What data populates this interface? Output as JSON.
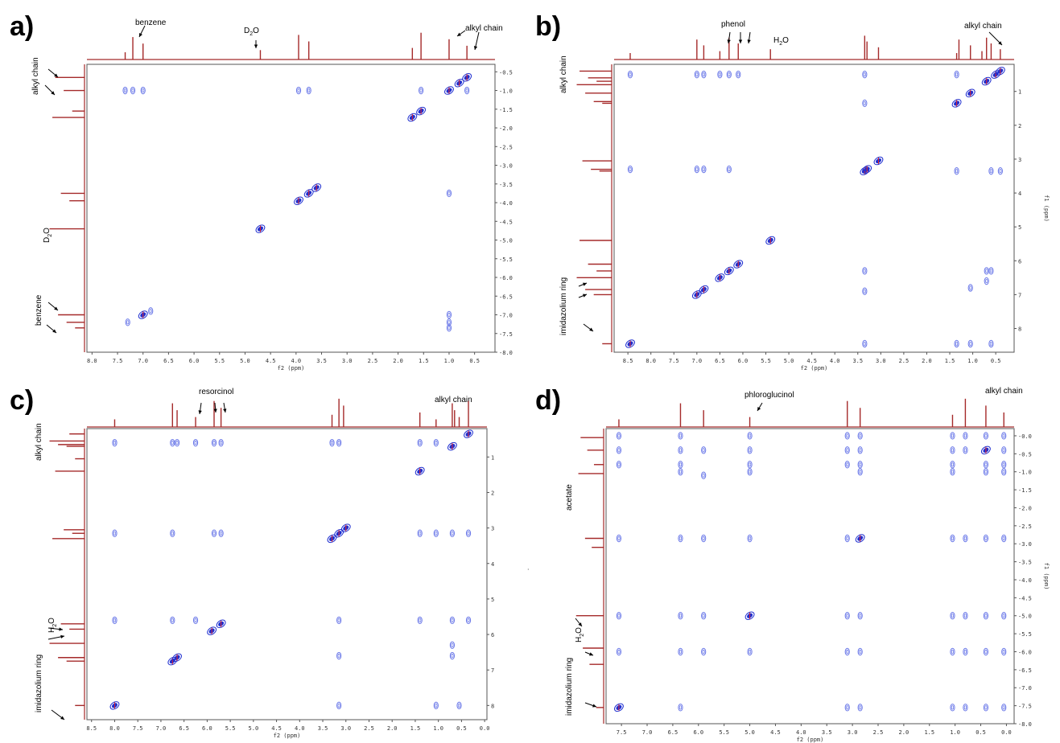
{
  "panels": [
    {
      "label": "a)",
      "annotations": [
        "benzene",
        "D",
        "2",
        "O",
        "alkyl chain"
      ],
      "vertical_annotations": [
        "alkyl chain",
        "D",
        "2",
        "O",
        "benzene"
      ],
      "xaxis_title": "f2 (ppm)",
      "yaxis_title": "f1 (ppm)",
      "xticks": [
        "8.0",
        "7.5",
        "7.0",
        "6.5",
        "6.0",
        "5.5",
        "5.0",
        "4.5",
        "4.0",
        "3.5",
        "3.0",
        "2.5",
        "2.0",
        "1.5",
        "1.0",
        "0.5"
      ],
      "yticks": [
        "-0.5",
        "-1.0",
        "-1.5",
        "-2.0",
        "-2.5",
        "-3.0",
        "-3.5",
        "-4.0",
        "-4.5",
        "-5.0",
        "-5.5",
        "-6.0",
        "-6.5",
        "-7.0",
        "-7.5",
        "-8.0"
      ]
    },
    {
      "label": "b)",
      "annotations": [
        "phenol",
        "H",
        "2",
        "O",
        "alkyl chain"
      ],
      "vertical_annotations": [
        "alkyl chain",
        "imidazolium ring"
      ],
      "xaxis_title": "f2 (ppm)",
      "yaxis_title": "f1 (ppm)",
      "xticks": [
        "8.5",
        "8.0",
        "7.5",
        "7.0",
        "6.5",
        "6.0",
        "5.5",
        "5.0",
        "4.5",
        "4.0",
        "3.5",
        "3.0",
        "2.5",
        "2.0",
        "1.5",
        "1.0",
        "0.5"
      ],
      "yticks": [
        "1",
        "2",
        "3",
        "4",
        "5",
        "6",
        "7",
        "8"
      ]
    },
    {
      "label": "c)",
      "annotations": [
        "resorcinol",
        "alkyl chain"
      ],
      "vertical_annotations": [
        "alkyl chain",
        "H",
        "2",
        "O",
        "imidazolium ring"
      ],
      "xaxis_title": "f2 (ppm)",
      "yaxis_title": "",
      "xticks": [
        "8.5",
        "8.0",
        "7.5",
        "7.0",
        "6.5",
        "6.0",
        "5.5",
        "5.0",
        "4.5",
        "4.0",
        "3.5",
        "3.0",
        "2.5",
        "2.0",
        "1.5",
        "1.0",
        "0.5",
        "0.0"
      ],
      "yticks": [
        "1",
        "2",
        "3",
        "4",
        "5",
        "6",
        "7",
        "8"
      ]
    },
    {
      "label": "d)",
      "annotations": [
        "phloroglucinol",
        "alkyl chain"
      ],
      "vertical_annotations": [
        "acetate",
        "H",
        "2",
        "O",
        "imidazolium ring"
      ],
      "xaxis_title": "f2 (ppm)",
      "yaxis_title": "f1 (ppm)",
      "xticks": [
        "7.5",
        "7.0",
        "6.5",
        "6.0",
        "5.5",
        "5.0",
        "4.5",
        "4.0",
        "3.5",
        "3.0",
        "2.5",
        "2.0",
        "1.5",
        "1.0",
        "0.5",
        "0.0"
      ],
      "yticks": [
        "-0.0",
        "-0.5",
        "-1.0",
        "-1.5",
        "-2.0",
        "-2.5",
        "-3.0",
        "-3.5",
        "-4.0",
        "-4.5",
        "-5.0",
        "-5.5",
        "-6.0",
        "-6.5",
        "-7.0",
        "-7.5",
        "-8.0"
      ]
    }
  ],
  "colors": {
    "spectrum": "#a52a2a",
    "positive_contour": "#1f2fd0",
    "negative_contour": "#e0202a",
    "light_contour": "#6a78e8"
  },
  "chart_data": [
    {
      "type": "heatmap",
      "subtype": "2D NMR contour",
      "xlabel": "f2 (ppm)",
      "ylabel": "f1 (ppm)",
      "xlim": [
        8.1,
        0.1
      ],
      "ylim": [
        0.3,
        8.0
      ],
      "projection_peaks": [
        7.35,
        7.2,
        7.0,
        4.7,
        3.95,
        3.75,
        1.72,
        1.55,
        1.0,
        0.65
      ],
      "cross_peaks": [
        [
          7.0,
          7.0
        ],
        [
          7.3,
          7.2
        ],
        [
          6.85,
          6.9
        ],
        [
          7.35,
          1.0
        ],
        [
          7.2,
          1.0
        ],
        [
          7.0,
          1.0
        ],
        [
          3.95,
          3.95
        ],
        [
          3.75,
          3.75
        ],
        [
          3.6,
          3.6
        ],
        [
          4.7,
          4.7
        ],
        [
          1.72,
          1.72
        ],
        [
          1.55,
          1.55
        ],
        [
          1.0,
          1.0
        ],
        [
          0.65,
          0.65
        ],
        [
          0.8,
          0.8
        ],
        [
          1.0,
          3.75
        ],
        [
          1.0,
          7.0
        ],
        [
          1.0,
          7.2
        ],
        [
          1.0,
          7.35
        ],
        [
          3.95,
          1.0
        ],
        [
          3.75,
          1.0
        ],
        [
          0.65,
          1.0
        ],
        [
          1.55,
          1.0
        ]
      ]
    },
    {
      "type": "heatmap",
      "subtype": "2D NMR contour",
      "xlabel": "f2 (ppm)",
      "ylabel": "f1 (ppm)",
      "xlim": [
        8.8,
        0.1
      ],
      "ylim": [
        0.2,
        8.7
      ],
      "projection_peaks": [
        8.45,
        7.0,
        6.85,
        6.5,
        6.3,
        6.1,
        5.4,
        3.35,
        3.3,
        3.05,
        1.35,
        1.3,
        1.05,
        0.8,
        0.7,
        0.6,
        0.4
      ],
      "cross_peaks": [
        [
          8.45,
          8.45
        ],
        [
          7.0,
          7.0
        ],
        [
          6.85,
          6.85
        ],
        [
          6.5,
          6.5
        ],
        [
          6.3,
          6.3
        ],
        [
          6.1,
          6.1
        ],
        [
          5.4,
          5.4
        ],
        [
          3.35,
          3.35
        ],
        [
          3.3,
          3.3
        ],
        [
          3.05,
          3.05
        ],
        [
          1.35,
          1.35
        ],
        [
          1.05,
          1.05
        ],
        [
          0.7,
          0.7
        ],
        [
          0.5,
          0.5
        ],
        [
          0.4,
          0.4
        ],
        [
          8.45,
          0.5
        ],
        [
          7.0,
          0.5
        ],
        [
          6.85,
          0.5
        ],
        [
          6.5,
          0.5
        ],
        [
          6.3,
          0.5
        ],
        [
          6.1,
          0.5
        ],
        [
          3.35,
          0.5
        ],
        [
          1.35,
          0.5
        ],
        [
          8.45,
          3.3
        ],
        [
          7.0,
          3.3
        ],
        [
          6.85,
          3.3
        ],
        [
          6.3,
          3.3
        ],
        [
          3.35,
          8.45
        ],
        [
          1.35,
          8.45
        ],
        [
          1.05,
          8.45
        ],
        [
          0.6,
          8.45
        ],
        [
          3.35,
          1.35
        ],
        [
          1.35,
          3.35
        ],
        [
          0.6,
          3.35
        ],
        [
          0.4,
          3.35
        ],
        [
          3.35,
          6.3
        ],
        [
          3.35,
          6.9
        ],
        [
          0.7,
          6.3
        ],
        [
          0.6,
          6.3
        ],
        [
          1.05,
          6.8
        ],
        [
          0.7,
          6.6
        ]
      ]
    },
    {
      "type": "heatmap",
      "subtype": "2D NMR contour",
      "xlabel": "f2 (ppm)",
      "ylabel": "",
      "xlim": [
        8.6,
        -0.05
      ],
      "ylim": [
        0.2,
        8.4
      ],
      "projection_peaks": [
        8.0,
        6.75,
        6.65,
        6.25,
        5.85,
        5.7,
        3.3,
        3.15,
        3.05,
        1.4,
        1.05,
        0.7,
        0.65,
        0.55,
        0.35
      ],
      "cross_peaks": [
        [
          8.0,
          8.0
        ],
        [
          6.75,
          6.75
        ],
        [
          6.65,
          6.65
        ],
        [
          5.9,
          5.9
        ],
        [
          5.7,
          5.7
        ],
        [
          3.3,
          3.3
        ],
        [
          3.15,
          3.15
        ],
        [
          3.0,
          3.0
        ],
        [
          1.4,
          1.4
        ],
        [
          0.7,
          0.7
        ],
        [
          0.35,
          0.35
        ],
        [
          8.0,
          0.6
        ],
        [
          6.75,
          0.6
        ],
        [
          6.65,
          0.6
        ],
        [
          6.25,
          0.6
        ],
        [
          5.85,
          0.6
        ],
        [
          5.7,
          0.6
        ],
        [
          3.3,
          0.6
        ],
        [
          3.15,
          0.6
        ],
        [
          1.4,
          0.6
        ],
        [
          1.05,
          0.6
        ],
        [
          8.0,
          3.15
        ],
        [
          6.75,
          3.15
        ],
        [
          5.85,
          3.15
        ],
        [
          5.7,
          3.15
        ],
        [
          1.4,
          3.15
        ],
        [
          1.05,
          3.15
        ],
        [
          0.7,
          3.15
        ],
        [
          0.35,
          3.15
        ],
        [
          8.0,
          5.6
        ],
        [
          6.75,
          5.6
        ],
        [
          6.25,
          5.6
        ],
        [
          3.15,
          5.6
        ],
        [
          1.4,
          5.6
        ],
        [
          0.7,
          5.6
        ],
        [
          0.35,
          5.6
        ],
        [
          3.15,
          8.0
        ],
        [
          1.05,
          8.0
        ],
        [
          0.55,
          8.0
        ],
        [
          3.15,
          6.6
        ],
        [
          0.7,
          6.3
        ],
        [
          0.7,
          6.6
        ]
      ]
    },
    {
      "type": "heatmap",
      "subtype": "2D NMR contour",
      "xlabel": "f2 (ppm)",
      "ylabel": "f1 (ppm)",
      "xlim": [
        7.8,
        -0.15
      ],
      "ylim": [
        -0.2,
        8.0
      ],
      "projection_peaks": [
        7.55,
        6.35,
        5.9,
        5.0,
        3.1,
        2.85,
        1.05,
        0.8,
        0.4,
        0.05
      ],
      "cross_peaks": [
        [
          7.55,
          0.0
        ],
        [
          6.35,
          0.0
        ],
        [
          5.0,
          0.0
        ],
        [
          3.1,
          0.0
        ],
        [
          2.85,
          0.0
        ],
        [
          1.05,
          0.0
        ],
        [
          0.8,
          0.0
        ],
        [
          0.4,
          0.0
        ],
        [
          0.05,
          0.0
        ],
        [
          7.55,
          0.4
        ],
        [
          6.35,
          0.4
        ],
        [
          5.9,
          0.4
        ],
        [
          5.0,
          0.4
        ],
        [
          3.1,
          0.4
        ],
        [
          2.85,
          0.4
        ],
        [
          1.05,
          0.4
        ],
        [
          0.8,
          0.4
        ],
        [
          0.4,
          0.4
        ],
        [
          0.05,
          0.4
        ],
        [
          7.55,
          0.8
        ],
        [
          6.35,
          0.8
        ],
        [
          5.0,
          0.8
        ],
        [
          3.1,
          0.8
        ],
        [
          2.85,
          0.8
        ],
        [
          1.05,
          0.8
        ],
        [
          0.4,
          0.8
        ],
        [
          0.05,
          0.8
        ],
        [
          6.35,
          1.0
        ],
        [
          5.9,
          1.1
        ],
        [
          5.0,
          1.0
        ],
        [
          2.85,
          1.0
        ],
        [
          1.05,
          1.0
        ],
        [
          0.4,
          1.0
        ],
        [
          0.05,
          1.0
        ],
        [
          7.55,
          2.85
        ],
        [
          6.35,
          2.85
        ],
        [
          5.9,
          2.85
        ],
        [
          5.0,
          2.85
        ],
        [
          3.1,
          2.85
        ],
        [
          2.85,
          2.85
        ],
        [
          1.05,
          2.85
        ],
        [
          0.8,
          2.85
        ],
        [
          0.4,
          2.85
        ],
        [
          0.05,
          2.85
        ],
        [
          7.55,
          5.0
        ],
        [
          6.35,
          5.0
        ],
        [
          5.9,
          5.0
        ],
        [
          5.0,
          5.0
        ],
        [
          3.1,
          5.0
        ],
        [
          2.85,
          5.0
        ],
        [
          1.05,
          5.0
        ],
        [
          0.8,
          5.0
        ],
        [
          0.4,
          5.0
        ],
        [
          0.05,
          5.0
        ],
        [
          7.55,
          6.0
        ],
        [
          6.35,
          6.0
        ],
        [
          5.9,
          6.0
        ],
        [
          5.0,
          6.0
        ],
        [
          3.1,
          6.0
        ],
        [
          2.85,
          6.0
        ],
        [
          1.05,
          6.0
        ],
        [
          0.8,
          6.0
        ],
        [
          0.4,
          6.0
        ],
        [
          0.05,
          6.0
        ],
        [
          7.55,
          7.55
        ],
        [
          6.35,
          7.55
        ],
        [
          3.1,
          7.55
        ],
        [
          2.85,
          7.55
        ],
        [
          1.05,
          7.55
        ],
        [
          0.8,
          7.55
        ],
        [
          0.4,
          7.55
        ],
        [
          0.05,
          7.55
        ]
      ]
    }
  ]
}
